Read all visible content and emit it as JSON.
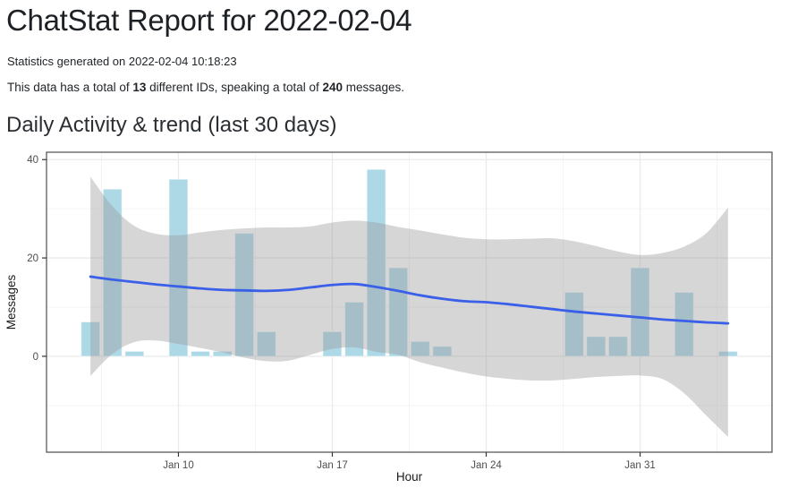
{
  "page": {
    "title": "ChatStat Report for 2022-02-04",
    "generated_line": "Statistics generated on 2022-02-04 10:18:23",
    "summary": {
      "prefix": "This data has a total of ",
      "ids": "13",
      "middle": " different IDs, speaking a total of ",
      "messages": "240",
      "suffix": " messages."
    },
    "section_title": "Daily Activity & trend (last 30 days)"
  },
  "chart_data": {
    "type": "bar",
    "title": "Daily Activity & trend (last 30 days)",
    "xlabel": "Hour",
    "ylabel": "Messages",
    "legend": "none",
    "grid": "on",
    "x_unit": "day index (Jan 6 = 6 ... Feb 4 = 35)",
    "x_range": [
      4.0,
      37.0
    ],
    "y_range": [
      -19.5,
      41.5
    ],
    "axes": {
      "x_ticks": [
        {
          "day": 10,
          "label": "Jan 10"
        },
        {
          "day": 17,
          "label": "Jan 17"
        },
        {
          "day": 24,
          "label": "Jan 24"
        },
        {
          "day": 31,
          "label": "Jan 31"
        }
      ],
      "x_minor": [
        6.5,
        13.5,
        20.5,
        27.5,
        34.5
      ],
      "y_ticks": [
        {
          "value": 0,
          "label": "0"
        },
        {
          "value": 20,
          "label": "20"
        },
        {
          "value": 40,
          "label": "40"
        }
      ],
      "y_minor": [
        -10,
        10,
        30
      ]
    },
    "bars": {
      "dates": [
        "Jan 6",
        "Jan 7",
        "Jan 8",
        "Jan 9",
        "Jan 10",
        "Jan 11",
        "Jan 12",
        "Jan 13",
        "Jan 14",
        "Jan 15",
        "Jan 16",
        "Jan 17",
        "Jan 18",
        "Jan 19",
        "Jan 20",
        "Jan 21",
        "Jan 22",
        "Jan 23",
        "Jan 24",
        "Jan 25",
        "Jan 26",
        "Jan 27",
        "Jan 28",
        "Jan 29",
        "Jan 30",
        "Jan 31",
        "Feb 1",
        "Feb 2",
        "Feb 3",
        "Feb 4"
      ],
      "days": [
        6,
        7,
        8,
        9,
        10,
        11,
        12,
        13,
        14,
        15,
        16,
        17,
        18,
        19,
        20,
        21,
        22,
        23,
        24,
        25,
        26,
        27,
        28,
        29,
        30,
        31,
        32,
        33,
        34,
        35
      ],
      "values": [
        7,
        34,
        1,
        0,
        36,
        1,
        1,
        25,
        5,
        0,
        0,
        5,
        11,
        38,
        18,
        3,
        2,
        0,
        0,
        0,
        0,
        0,
        13,
        4,
        4,
        18,
        0,
        13,
        0,
        1
      ],
      "total": 240
    },
    "trend": {
      "days": [
        6,
        7,
        8,
        9,
        10,
        11,
        12,
        13,
        14,
        15,
        16,
        17,
        18,
        19,
        20,
        21,
        22,
        23,
        24,
        25,
        26,
        27,
        28,
        29,
        30,
        31,
        32,
        33,
        34,
        35
      ],
      "values": [
        16.2,
        15.6,
        15.1,
        14.6,
        14.2,
        13.8,
        13.5,
        13.4,
        13.3,
        13.5,
        14.0,
        14.5,
        14.7,
        14.1,
        13.3,
        12.4,
        11.7,
        11.2,
        11.0,
        10.6,
        10.1,
        9.6,
        9.1,
        8.7,
        8.3,
        7.9,
        7.5,
        7.2,
        6.9,
        6.7
      ]
    },
    "ribbon": {
      "days": [
        6,
        7,
        8,
        9,
        10,
        11,
        12,
        13,
        14,
        15,
        16,
        17,
        18,
        19,
        20,
        21,
        22,
        23,
        24,
        25,
        26,
        27,
        28,
        29,
        30,
        31,
        32,
        33,
        34,
        35
      ],
      "upper": [
        36.5,
        30.5,
        26.5,
        24.9,
        24.6,
        25.2,
        25.7,
        26.0,
        26.2,
        26.2,
        26.4,
        27.2,
        27.6,
        27.2,
        26.3,
        25.6,
        24.8,
        24.1,
        23.8,
        23.8,
        23.9,
        24.0,
        23.4,
        22.4,
        21.3,
        20.6,
        21.0,
        22.3,
        25.0,
        30.2
      ],
      "lower": [
        -4.0,
        0.5,
        2.9,
        3.2,
        2.5,
        1.7,
        0.8,
        -0.3,
        -1.0,
        -0.9,
        0.3,
        1.5,
        1.8,
        0.9,
        0.3,
        -1.2,
        -2.3,
        -3.3,
        -4.1,
        -4.6,
        -4.9,
        -4.9,
        -4.6,
        -4.2,
        -4.0,
        -3.9,
        -4.6,
        -7.5,
        -12.0,
        -16.4
      ]
    },
    "colors": {
      "bar": "#ADD8E6",
      "bar_edge": "rgba(255,255,255,0.5)",
      "ribbon": "#999999",
      "ribbon_alpha": 0.4,
      "trend": "#3A5FE8",
      "grid_major": "#EAEAEA",
      "grid_minor": "#F4F4F4",
      "panel_border": "#4D4D4D",
      "tick_mark": "#333333",
      "axis_text": "#4D4D4D",
      "axis_title": "#1A1A1A"
    }
  }
}
